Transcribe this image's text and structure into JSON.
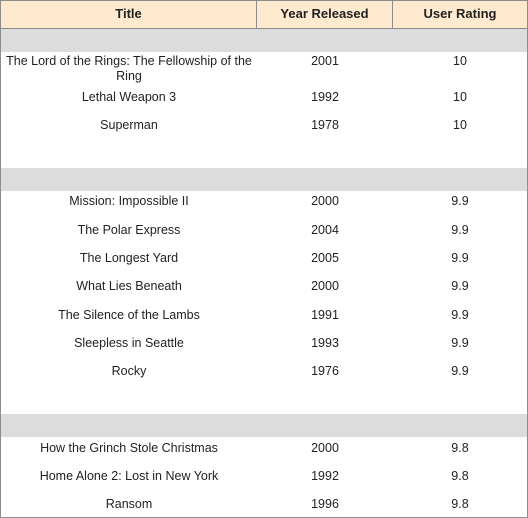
{
  "columns": [
    "Title",
    "Year Released",
    "User Rating"
  ],
  "rows": [
    {
      "title": "The Lord of the Rings: The Fellowship of the Ring",
      "year": "2001",
      "rating": "10"
    },
    {
      "title": "Lethal Weapon 3",
      "year": "1992",
      "rating": "10"
    },
    {
      "title": "Superman",
      "year": "1978",
      "rating": "10"
    },
    {
      "title": "Mission: Impossible II",
      "year": "2000",
      "rating": "9.9"
    },
    {
      "title": "The Polar Express",
      "year": "2004",
      "rating": "9.9"
    },
    {
      "title": "The Longest Yard",
      "year": "2005",
      "rating": "9.9"
    },
    {
      "title": "What Lies Beneath",
      "year": "2000",
      "rating": "9.9"
    },
    {
      "title": "The Silence of the Lambs",
      "year": "1991",
      "rating": "9.9"
    },
    {
      "title": "Sleepless in Seattle",
      "year": "1993",
      "rating": "9.9"
    },
    {
      "title": "Rocky",
      "year": "1976",
      "rating": "9.9"
    },
    {
      "title": "How the Grinch Stole Christmas",
      "year": "2000",
      "rating": "9.8"
    },
    {
      "title": "Home Alone 2: Lost in New York",
      "year": "1992",
      "rating": "9.8"
    },
    {
      "title": "Ransom",
      "year": "1996",
      "rating": "9.8"
    }
  ]
}
